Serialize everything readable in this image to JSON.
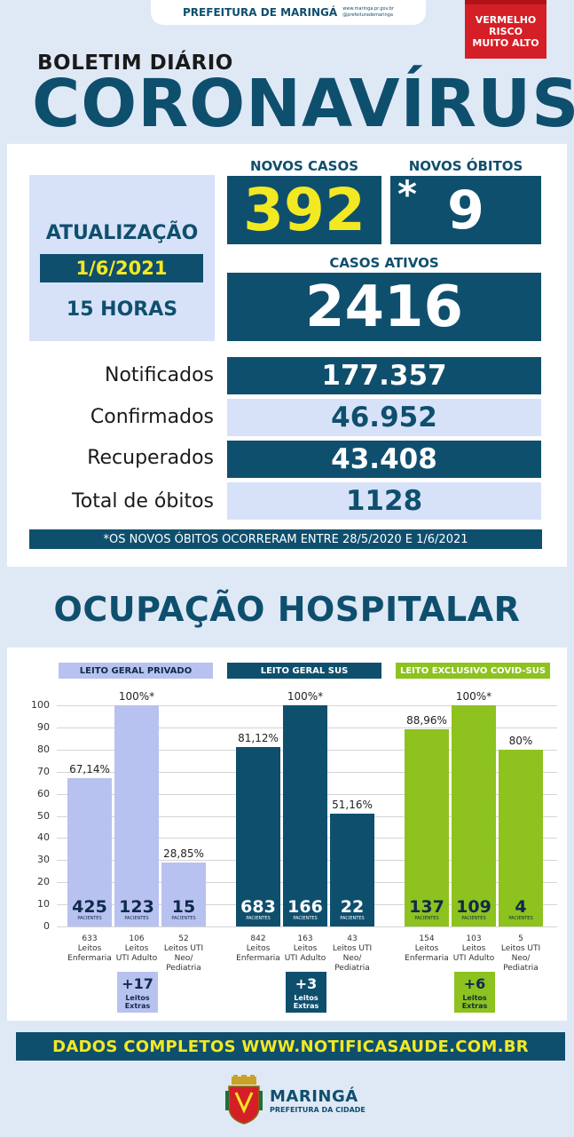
{
  "header": {
    "city_banner": "PREFEITURA DE MARINGÁ",
    "social_site": "www.maringa.pr.gov.br",
    "social_handle": "@prefeiturademaringa",
    "risk_lines": [
      "VERMELHO",
      "RISCO",
      "MUITO ALTO"
    ],
    "risk_color": "#d51f26",
    "bulletin": "BOLETIM DIÁRIO",
    "title": "CORONAVÍRUS"
  },
  "update": {
    "label": "ATUALIZAÇÃO",
    "date": "1/6/2021",
    "hour": "15 HORAS"
  },
  "highlights": {
    "novos_casos_label": "NOVOS CASOS",
    "novos_casos": "392",
    "novos_obitos_label": "NOVOS ÓBITOS",
    "novos_obitos_mark": "*",
    "novos_obitos": "9",
    "ativos_label": "CASOS ATIVOS",
    "ativos": "2416"
  },
  "stats": [
    {
      "label": "Notificados",
      "value": "177.357"
    },
    {
      "label": "Confirmados",
      "value": "46.952"
    },
    {
      "label": "Recuperados",
      "value": "43.408"
    },
    {
      "label": "Total de óbitos",
      "value": "1128"
    }
  ],
  "note": "*OS NOVOS ÓBITOS OCORRERAM ENTRE 28/5/2020 E 1/6/2021",
  "occupancy_title": "OCUPAÇÃO HOSPITALAR",
  "chart_data": {
    "type": "bar",
    "ylim": [
      0,
      100
    ],
    "yticks": [
      "0",
      "10",
      "20",
      "30",
      "40",
      "50",
      "60",
      "70",
      "80",
      "90",
      "100"
    ],
    "paciente_label": "PACIENTES",
    "extras_label": [
      "Leitos",
      "Extras"
    ],
    "groups": [
      {
        "name": "LEITO GERAL PRIVADO",
        "color": "#b8c2f0",
        "title_color": "#b8c2f0",
        "title_text_color": "#0f2a4a",
        "text_color": "#0f2a4a",
        "extra": "+17",
        "bars": [
          {
            "value": 67.14,
            "label": "67,14%",
            "patients": "425",
            "cap": [
              "633",
              "Leitos",
              "Enfermaria"
            ]
          },
          {
            "value": 100,
            "label": "100%*",
            "patients": "123",
            "cap": [
              "106",
              "Leitos",
              "UTI Adulto"
            ]
          },
          {
            "value": 28.85,
            "label": "28,85%",
            "patients": "15",
            "cap": [
              "52",
              "Leitos UTI",
              "Neo/",
              "Pediatria"
            ]
          }
        ]
      },
      {
        "name": "LEITO GERAL SUS",
        "color": "#0f4f6e",
        "title_color": "#0f4f6e",
        "title_text_color": "#ffffff",
        "text_color": "#ffffff",
        "extra": "+3",
        "bars": [
          {
            "value": 81.12,
            "label": "81,12%",
            "patients": "683",
            "cap": [
              "842",
              "Leitos",
              "Enfermaria"
            ]
          },
          {
            "value": 100,
            "label": "100%*",
            "patients": "166",
            "cap": [
              "163",
              "Leitos",
              "UTI Adulto"
            ]
          },
          {
            "value": 51.16,
            "label": "51,16%",
            "patients": "22",
            "cap": [
              "43",
              "Leitos UTI",
              "Neo/",
              "Pediatria"
            ]
          }
        ]
      },
      {
        "name": "LEITO EXCLUSIVO COVID-SUS",
        "color": "#8dc21f",
        "title_color": "#8dc21f",
        "title_text_color": "#ffffff",
        "text_color": "#0f2a4a",
        "extra": "+6",
        "bars": [
          {
            "value": 88.96,
            "label": "88,96%",
            "patients": "137",
            "cap": [
              "154",
              "Leitos",
              "Enfermaria"
            ]
          },
          {
            "value": 100,
            "label": "100%*",
            "patients": "109",
            "cap": [
              "103",
              "Leitos",
              "UTI Adulto"
            ]
          },
          {
            "value": 80,
            "label": "80%",
            "patients": "4",
            "cap": [
              "5",
              "Leitos UTI",
              "Neo/",
              "Pediatria"
            ]
          }
        ]
      }
    ]
  },
  "footer": {
    "text": "DADOS COMPLETOS  WWW.NOTIFICASAUDE.COM.BR",
    "logo_name": "MARINGÁ",
    "logo_sub": "PREFEITURA DA CIDADE"
  }
}
